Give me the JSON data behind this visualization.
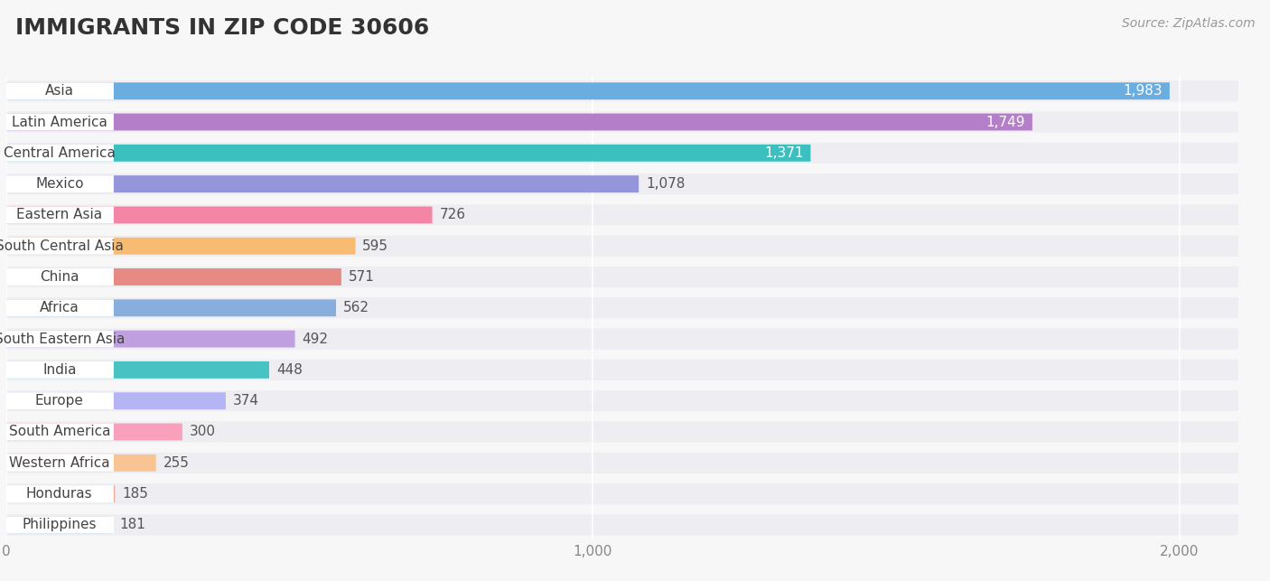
{
  "title": "IMMIGRANTS IN ZIP CODE 30606",
  "source": "Source: ZipAtlas.com",
  "categories": [
    "Asia",
    "Latin America",
    "Central America",
    "Mexico",
    "Eastern Asia",
    "South Central Asia",
    "China",
    "Africa",
    "South Eastern Asia",
    "India",
    "Europe",
    "South America",
    "Western Africa",
    "Honduras",
    "Philippines"
  ],
  "values": [
    1983,
    1749,
    1371,
    1078,
    726,
    595,
    571,
    562,
    492,
    448,
    374,
    300,
    255,
    185,
    181
  ],
  "bar_colors": [
    "#6aade0",
    "#b57ec8",
    "#3bbfbf",
    "#9595dc",
    "#f585a5",
    "#f7bb72",
    "#e88a84",
    "#88aede",
    "#c09fe0",
    "#48c2c2",
    "#b5b5f5",
    "#f8a0bc",
    "#f8c494",
    "#f2a898",
    "#95bce8"
  ],
  "background_color": "#f7f7f8",
  "bar_bg_color": "#e4e4ec",
  "row_bg_color": "#ededf2",
  "xlim_max": 2100,
  "xlabel_ticks": [
    0,
    1000,
    2000
  ],
  "xlabel_tick_labels": [
    "0",
    "1,000",
    "2,000"
  ],
  "title_fontsize": 18,
  "label_fontsize": 11,
  "value_fontsize": 11,
  "value_threshold_inside": 1200
}
